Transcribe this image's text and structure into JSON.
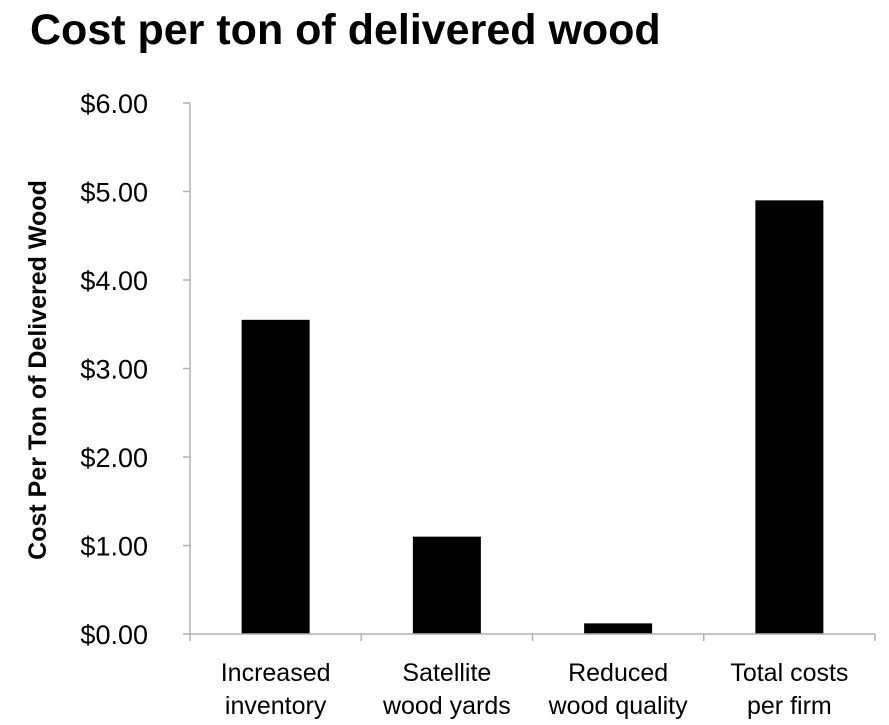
{
  "chart_data": {
    "type": "bar",
    "title": "Cost per ton of delivered wood",
    "xlabel": "",
    "ylabel": "Cost Per Ton of Delivered Wood",
    "categories": [
      [
        "Increased",
        "inventory"
      ],
      [
        "Satellite",
        "wood yards"
      ],
      [
        "Reduced",
        "wood quality"
      ],
      [
        "Total costs",
        "per firm"
      ]
    ],
    "values": [
      3.55,
      1.1,
      0.12,
      4.9
    ],
    "ylim": [
      0,
      6
    ],
    "yticks": [
      0,
      1,
      2,
      3,
      4,
      5,
      6
    ],
    "ytick_labels": [
      "$0.00",
      "$1.00",
      "$2.00",
      "$3.00",
      "$4.00",
      "$5.00",
      "$6.00"
    ],
    "grid": false,
    "legend": "none",
    "bar_color": "#000000",
    "axis_color": "#b0b0b0"
  }
}
